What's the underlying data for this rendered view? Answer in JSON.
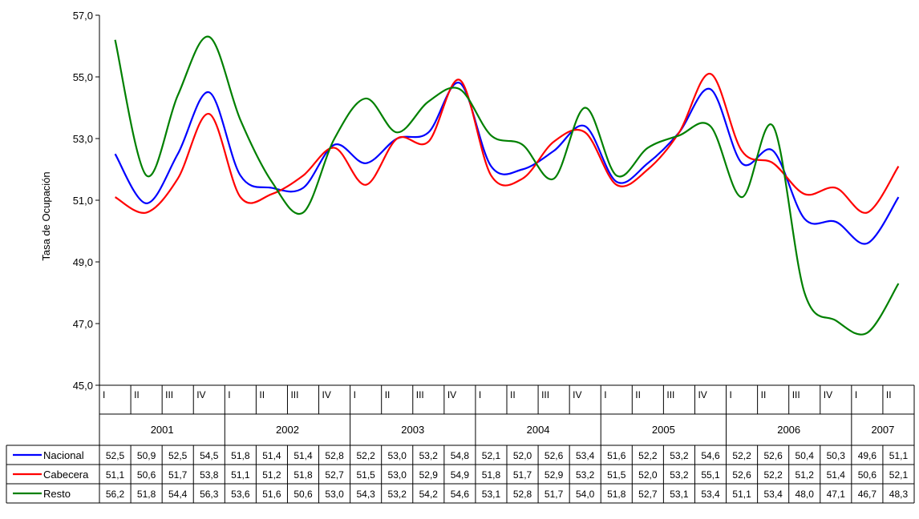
{
  "chart_data": {
    "type": "line",
    "ylabel": "Tasa de Ocupación",
    "ylim": [
      45,
      57
    ],
    "y_ticks": [
      "45,0",
      "47,0",
      "49,0",
      "51,0",
      "53,0",
      "55,0",
      "57,0"
    ],
    "y_tick_values": [
      45,
      47,
      49,
      51,
      53,
      55,
      57
    ],
    "quarters": [
      "I",
      "II",
      "III",
      "IV",
      "I",
      "II",
      "III",
      "IV",
      "I",
      "II",
      "III",
      "IV",
      "I",
      "II",
      "III",
      "IV",
      "I",
      "II",
      "III",
      "IV",
      "I",
      "II",
      "III",
      "IV",
      "I",
      "II"
    ],
    "years": [
      {
        "label": "2001",
        "count": 4
      },
      {
        "label": "2002",
        "count": 4
      },
      {
        "label": "2003",
        "count": 4
      },
      {
        "label": "2004",
        "count": 4
      },
      {
        "label": "2005",
        "count": 4
      },
      {
        "label": "2006",
        "count": 4
      },
      {
        "label": "2007",
        "count": 2
      }
    ],
    "series": [
      {
        "name": "Nacional",
        "color": "#0000ff",
        "values": [
          52.5,
          50.9,
          52.5,
          54.5,
          51.8,
          51.4,
          51.4,
          52.8,
          52.2,
          53.0,
          53.2,
          54.8,
          52.1,
          52.0,
          52.6,
          53.4,
          51.6,
          52.2,
          53.2,
          54.6,
          52.2,
          52.6,
          50.4,
          50.3,
          49.6,
          51.1
        ],
        "labels": [
          "52,5",
          "50,9",
          "52,5",
          "54,5",
          "51,8",
          "51,4",
          "51,4",
          "52,8",
          "52,2",
          "53,0",
          "53,2",
          "54,8",
          "52,1",
          "52,0",
          "52,6",
          "53,4",
          "51,6",
          "52,2",
          "53,2",
          "54,6",
          "52,2",
          "52,6",
          "50,4",
          "50,3",
          "49,6",
          "51,1"
        ]
      },
      {
        "name": "Cabecera",
        "color": "#ff0000",
        "values": [
          51.1,
          50.6,
          51.7,
          53.8,
          51.1,
          51.2,
          51.8,
          52.7,
          51.5,
          53.0,
          52.9,
          54.9,
          51.8,
          51.7,
          52.9,
          53.2,
          51.5,
          52.0,
          53.2,
          55.1,
          52.6,
          52.2,
          51.2,
          51.4,
          50.6,
          52.1
        ],
        "labels": [
          "51,1",
          "50,6",
          "51,7",
          "53,8",
          "51,1",
          "51,2",
          "51,8",
          "52,7",
          "51,5",
          "53,0",
          "52,9",
          "54,9",
          "51,8",
          "51,7",
          "52,9",
          "53,2",
          "51,5",
          "52,0",
          "53,2",
          "55,1",
          "52,6",
          "52,2",
          "51,2",
          "51,4",
          "50,6",
          "52,1"
        ]
      },
      {
        "name": "Resto",
        "color": "#008000",
        "values": [
          56.2,
          51.8,
          54.4,
          56.3,
          53.6,
          51.6,
          50.6,
          53.0,
          54.3,
          53.2,
          54.2,
          54.6,
          53.1,
          52.8,
          51.7,
          54.0,
          51.8,
          52.7,
          53.1,
          53.4,
          51.1,
          53.4,
          48.0,
          47.1,
          46.7,
          48.3
        ],
        "labels": [
          "56,2",
          "51,8",
          "54,4",
          "56,3",
          "53,6",
          "51,6",
          "50,6",
          "53,0",
          "54,3",
          "53,2",
          "54,2",
          "54,6",
          "53,1",
          "52,8",
          "51,7",
          "54,0",
          "51,8",
          "52,7",
          "53,1",
          "53,4",
          "51,1",
          "53,4",
          "48,0",
          "47,1",
          "46,7",
          "48,3"
        ]
      }
    ]
  }
}
